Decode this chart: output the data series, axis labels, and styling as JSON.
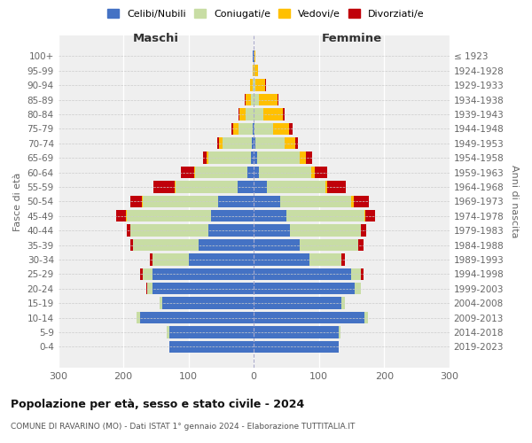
{
  "age_groups": [
    "0-4",
    "5-9",
    "10-14",
    "15-19",
    "20-24",
    "25-29",
    "30-34",
    "35-39",
    "40-44",
    "45-49",
    "50-54",
    "55-59",
    "60-64",
    "65-69",
    "70-74",
    "75-79",
    "80-84",
    "85-89",
    "90-94",
    "95-99",
    "100+"
  ],
  "birth_years": [
    "2019-2023",
    "2014-2018",
    "2009-2013",
    "2004-2008",
    "1999-2003",
    "1994-1998",
    "1989-1993",
    "1984-1988",
    "1979-1983",
    "1974-1978",
    "1969-1973",
    "1964-1968",
    "1959-1963",
    "1954-1958",
    "1949-1953",
    "1944-1948",
    "1939-1943",
    "1934-1938",
    "1929-1933",
    "1924-1928",
    "≤ 1923"
  ],
  "male_celibi": [
    130,
    130,
    175,
    140,
    155,
    155,
    100,
    85,
    70,
    65,
    55,
    25,
    10,
    5,
    3,
    1,
    0,
    0,
    0,
    0,
    1
  ],
  "male_coniugati": [
    0,
    3,
    5,
    5,
    8,
    15,
    55,
    100,
    120,
    130,
    115,
    95,
    80,
    65,
    45,
    22,
    12,
    5,
    2,
    0,
    0
  ],
  "male_vedovi": [
    0,
    0,
    0,
    0,
    0,
    0,
    0,
    0,
    0,
    1,
    2,
    2,
    2,
    3,
    5,
    8,
    10,
    8,
    4,
    1,
    0
  ],
  "male_divorziati": [
    0,
    0,
    0,
    0,
    2,
    5,
    5,
    5,
    5,
    15,
    18,
    32,
    20,
    5,
    3,
    3,
    1,
    1,
    0,
    0,
    0
  ],
  "female_nubili": [
    130,
    130,
    170,
    135,
    155,
    150,
    85,
    70,
    55,
    50,
    40,
    20,
    8,
    5,
    3,
    1,
    0,
    0,
    0,
    0,
    1
  ],
  "female_coniugate": [
    0,
    3,
    5,
    5,
    10,
    15,
    50,
    90,
    110,
    120,
    110,
    90,
    80,
    65,
    45,
    28,
    15,
    8,
    3,
    1,
    0
  ],
  "female_vedove": [
    0,
    0,
    0,
    0,
    0,
    0,
    0,
    0,
    0,
    1,
    3,
    3,
    5,
    10,
    15,
    25,
    30,
    28,
    15,
    5,
    2
  ],
  "female_divorziate": [
    0,
    0,
    0,
    0,
    0,
    3,
    5,
    8,
    8,
    15,
    23,
    28,
    20,
    10,
    5,
    5,
    3,
    2,
    1,
    0,
    0
  ],
  "colors": {
    "celibi": "#4472c4",
    "coniugati": "#c8dda4",
    "vedovi": "#ffc000",
    "divorziati": "#c0000a"
  },
  "title": "Popolazione per età, sesso e stato civile - 2024",
  "subtitle": "COMUNE DI RAVARINO (MO) - Dati ISTAT 1° gennaio 2024 - Elaborazione TUTTITALIA.IT",
  "label_maschi": "Maschi",
  "label_femmine": "Femmine",
  "ylabel_left": "Fasce di età",
  "ylabel_right": "Anni di nascita",
  "xlim": 300,
  "legend_labels": [
    "Celibi/Nubili",
    "Coniugati/e",
    "Vedovi/e",
    "Divorziati/e"
  ]
}
